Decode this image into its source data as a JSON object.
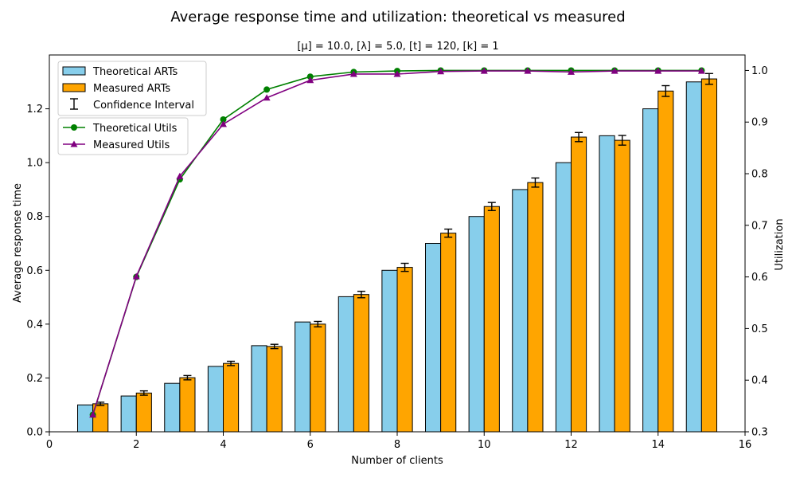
{
  "chart_data": {
    "type": "bar",
    "title": "Average response time and utilization: theoretical vs measured",
    "subtitle": "[μ] = 10.0, [λ] = 5.0, [t] = 120, [k] = 1",
    "xlabel": "Number of clients",
    "ylabel": "Average response time",
    "y2label": "Utilization",
    "xlim": [
      0,
      16
    ],
    "ylim": [
      0,
      1.4
    ],
    "y2lim": [
      0.3,
      1.03
    ],
    "x_ticks": [
      "0",
      "2",
      "4",
      "6",
      "8",
      "10",
      "12",
      "14",
      "16"
    ],
    "y_ticks": [
      "0.0",
      "0.2",
      "0.4",
      "0.6",
      "0.8",
      "1.0",
      "1.2"
    ],
    "y2_ticks": [
      "0.3",
      "0.4",
      "0.5",
      "0.6",
      "0.7",
      "0.8",
      "0.9",
      "1.0"
    ],
    "grid": false,
    "clients": [
      1,
      2,
      3,
      4,
      5,
      6,
      7,
      8,
      9,
      10,
      11,
      12,
      13,
      14,
      15
    ],
    "bar_series": [
      {
        "name": "Theoretical ARTs",
        "color": "#87ceeb",
        "values": [
          0.1,
          0.133,
          0.18,
          0.243,
          0.32,
          0.408,
          0.502,
          0.6,
          0.7,
          0.8,
          0.9,
          1.0,
          1.1,
          1.2,
          1.3
        ]
      },
      {
        "name": "Measured ARTs",
        "color": "#ffa500",
        "values": [
          0.104,
          0.144,
          0.201,
          0.254,
          0.317,
          0.4,
          0.51,
          0.611,
          0.738,
          0.837,
          0.926,
          1.095,
          1.083,
          1.266,
          1.311
        ],
        "ci": [
          0.006,
          0.008,
          0.008,
          0.008,
          0.008,
          0.01,
          0.012,
          0.015,
          0.015,
          0.015,
          0.017,
          0.017,
          0.018,
          0.02,
          0.02
        ]
      }
    ],
    "line_series": [
      {
        "name": "Theoretical Utils",
        "color": "#008000",
        "marker": "circle",
        "values": [
          0.333,
          0.6,
          0.789,
          0.905,
          0.963,
          0.988,
          0.997,
          0.999,
          1.0,
          1.0,
          1.0,
          1.0,
          1.0,
          1.0,
          1.0
        ]
      },
      {
        "name": "Measured Utils",
        "color": "#800080",
        "marker": "triangle",
        "values": [
          0.333,
          0.601,
          0.795,
          0.896,
          0.947,
          0.981,
          0.993,
          0.993,
          0.998,
          0.999,
          0.999,
          0.997,
          0.999,
          0.999,
          0.999
        ]
      }
    ],
    "legend": {
      "placement": "top-left",
      "bars": [
        "Theoretical ARTs",
        "Measured ARTs",
        "Confidence Interval"
      ],
      "lines": [
        "Theoretical Utils",
        "Measured Utils"
      ]
    }
  }
}
